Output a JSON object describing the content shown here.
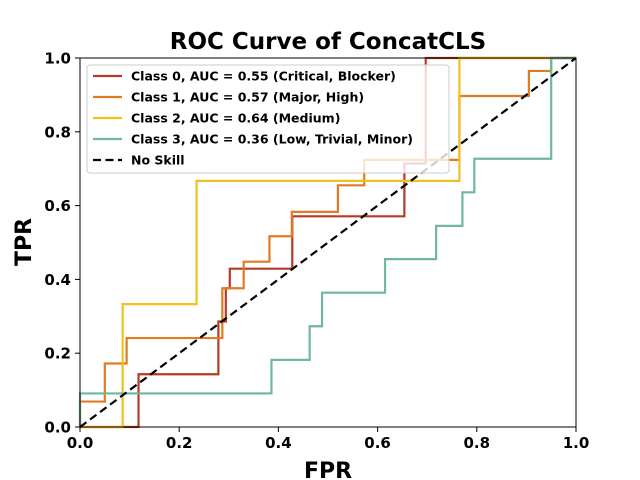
{
  "chart_data": {
    "type": "line",
    "title": "ROC Curve of ConcatCLS",
    "xlabel": "FPR",
    "ylabel": "TPR",
    "xlim": [
      0.0,
      1.0
    ],
    "ylim": [
      0.0,
      1.0
    ],
    "xticks": [
      "0.0",
      "0.2",
      "0.4",
      "0.6",
      "0.8",
      "1.0"
    ],
    "yticks": [
      "0.0",
      "0.2",
      "0.4",
      "0.6",
      "0.8",
      "1.0"
    ],
    "grid": false,
    "legend_position": "upper-left",
    "series": [
      {
        "name": "Class 0, AUC = 0.55 (Critical, Blocker)",
        "color": "#b83a26",
        "dash": "solid",
        "x": [
          0.0,
          0.118,
          0.118,
          0.279,
          0.279,
          0.294,
          0.294,
          0.302,
          0.302,
          0.419,
          0.419,
          0.428,
          0.428,
          0.654,
          0.654,
          0.697,
          0.697,
          0.765,
          0.765,
          1.0
        ],
        "y": [
          0.0,
          0.0,
          0.143,
          0.143,
          0.286,
          0.286,
          0.376,
          0.376,
          0.429,
          0.429,
          0.429,
          0.429,
          0.571,
          0.571,
          0.714,
          0.714,
          1.0,
          1.0,
          1.0,
          1.0
        ]
      },
      {
        "name": "Class 1, AUC = 0.57 (Major, High)",
        "color": "#e07b22",
        "dash": "solid",
        "x": [
          0.0,
          0.0,
          0.05,
          0.05,
          0.094,
          0.094,
          0.287,
          0.287,
          0.33,
          0.33,
          0.382,
          0.382,
          0.427,
          0.427,
          0.52,
          0.52,
          0.573,
          0.573,
          0.765,
          0.765,
          0.905,
          0.905,
          0.95,
          0.95,
          1.0
        ],
        "y": [
          0.0,
          0.069,
          0.069,
          0.172,
          0.172,
          0.241,
          0.241,
          0.376,
          0.376,
          0.448,
          0.448,
          0.517,
          0.517,
          0.583,
          0.583,
          0.655,
          0.655,
          0.724,
          0.724,
          0.897,
          0.897,
          0.965,
          0.965,
          1.0,
          1.0
        ]
      },
      {
        "name": "Class 2, AUC = 0.64 (Medium)",
        "color": "#f2c01c",
        "dash": "solid",
        "x": [
          0.0,
          0.086,
          0.086,
          0.235,
          0.235,
          0.765,
          0.765,
          1.0
        ],
        "y": [
          0.0,
          0.0,
          0.333,
          0.333,
          0.667,
          0.667,
          1.0,
          1.0
        ]
      },
      {
        "name": "Class 3, AUC = 0.36 (Low, Trivial, Minor)",
        "color": "#6fb89a",
        "dash": "solid",
        "x": [
          0.0,
          0.0,
          0.386,
          0.386,
          0.463,
          0.463,
          0.488,
          0.488,
          0.615,
          0.615,
          0.718,
          0.718,
          0.771,
          0.771,
          0.795,
          0.795,
          0.95,
          0.95,
          1.0
        ],
        "y": [
          0.0,
          0.091,
          0.091,
          0.182,
          0.182,
          0.273,
          0.273,
          0.364,
          0.364,
          0.455,
          0.455,
          0.545,
          0.545,
          0.636,
          0.636,
          0.727,
          0.727,
          1.0,
          1.0
        ]
      },
      {
        "name": "No Skill",
        "color": "#000000",
        "dash": "dashed",
        "x": [
          0.0,
          1.0
        ],
        "y": [
          0.0,
          1.0
        ]
      }
    ]
  }
}
